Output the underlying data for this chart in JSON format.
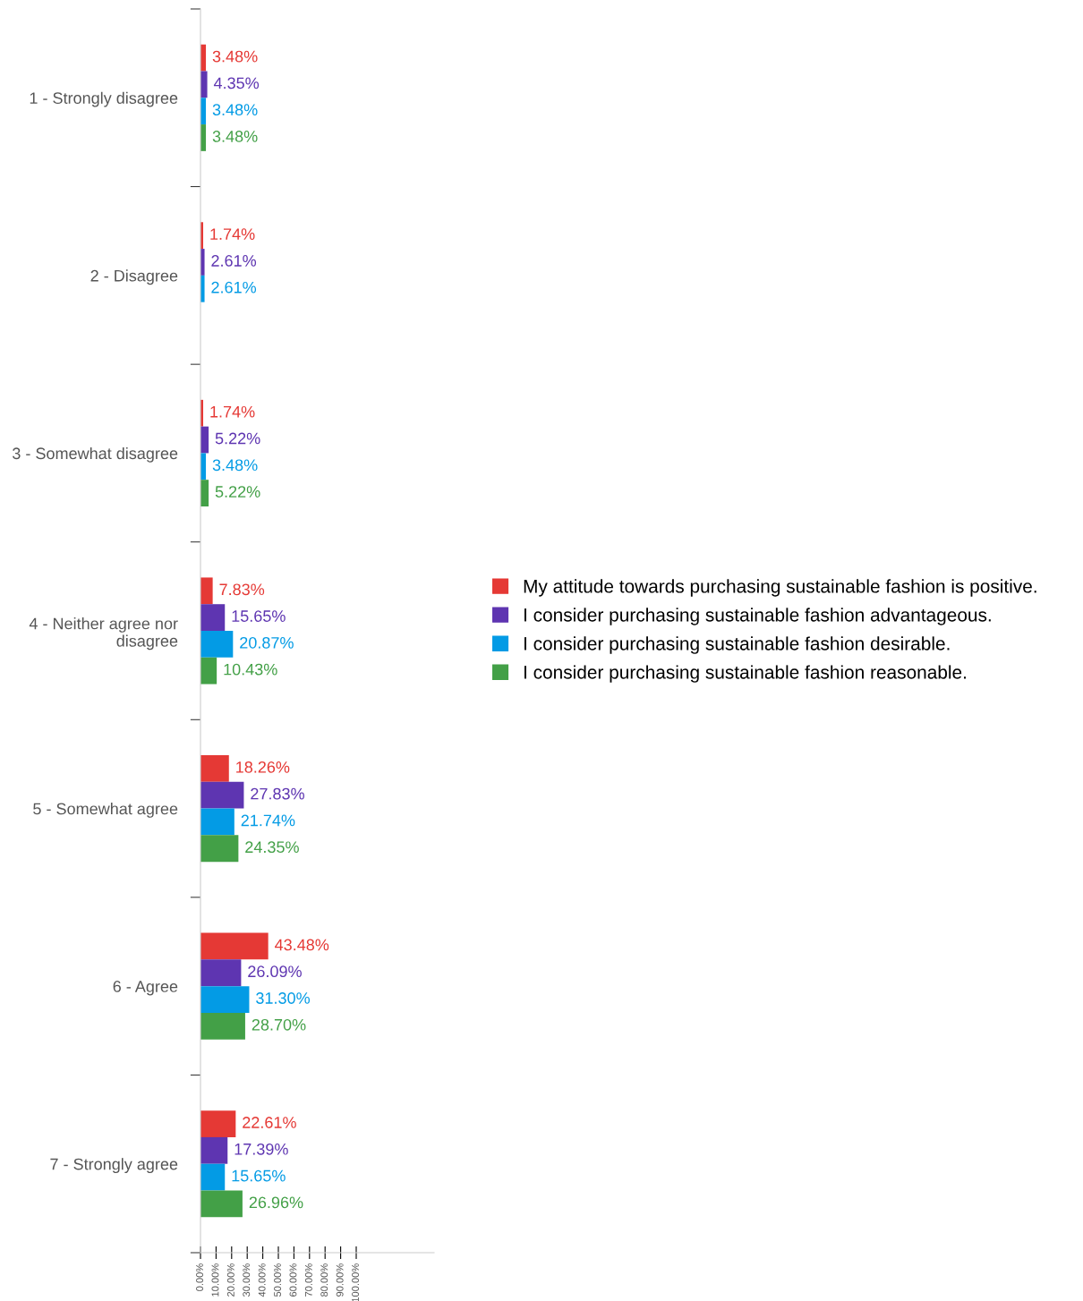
{
  "chart_data": {
    "type": "bar",
    "orientation": "horizontal",
    "categories": [
      "1 - Strongly disagree",
      "2 - Disagree",
      "3 - Somewhat disagree",
      "4 - Neither agree nor disagree",
      "5 - Somewhat agree",
      "6 - Agree",
      "7 - Strongly agree"
    ],
    "series": [
      {
        "name": "My attitude towards purchasing sustainable fashion is positive.",
        "color": "#e53935",
        "values": [
          3.48,
          1.74,
          1.74,
          7.83,
          18.26,
          43.48,
          22.61
        ]
      },
      {
        "name": "I consider purchasing sustainable fashion advantageous.",
        "color": "#5e35b1",
        "values": [
          4.35,
          2.61,
          5.22,
          15.65,
          27.83,
          26.09,
          17.39
        ]
      },
      {
        "name": "I consider purchasing sustainable fashion desirable.",
        "color": "#039be5",
        "values": [
          3.48,
          2.61,
          3.48,
          20.87,
          21.74,
          31.3,
          15.65
        ]
      },
      {
        "name": "I consider purchasing sustainable fashion reasonable.",
        "color": "#43a047",
        "values": [
          3.48,
          null,
          5.22,
          10.43,
          24.35,
          28.7,
          26.96
        ]
      }
    ],
    "value_labels": [
      [
        "3.48%",
        "1.74%",
        "1.74%",
        "7.83%",
        "18.26%",
        "43.48%",
        "22.61%"
      ],
      [
        "4.35%",
        "2.61%",
        "5.22%",
        "15.65%",
        "27.83%",
        "26.09%",
        "17.39%"
      ],
      [
        "3.48%",
        "2.61%",
        "3.48%",
        "20.87%",
        "21.74%",
        "31.30%",
        "15.65%"
      ],
      [
        "3.48%",
        null,
        "5.22%",
        "10.43%",
        "24.35%",
        "28.70%",
        "26.96%"
      ]
    ],
    "xlim": [
      0,
      150
    ],
    "xticks": [
      {
        "value": 0,
        "label": "0.00%"
      },
      {
        "value": 10,
        "label": "10.00%"
      },
      {
        "value": 20,
        "label": "20.00%"
      },
      {
        "value": 30,
        "label": "30.00%"
      },
      {
        "value": 40,
        "label": "40.00%"
      },
      {
        "value": 50,
        "label": "50.00%"
      },
      {
        "value": 60,
        "label": "60.00%"
      },
      {
        "value": 70,
        "label": "70.00%"
      },
      {
        "value": 80,
        "label": "80.00%"
      },
      {
        "value": 90,
        "label": "90.00%"
      },
      {
        "value": 100,
        "label": "100.00%"
      }
    ],
    "grid": false,
    "legend": "right"
  }
}
